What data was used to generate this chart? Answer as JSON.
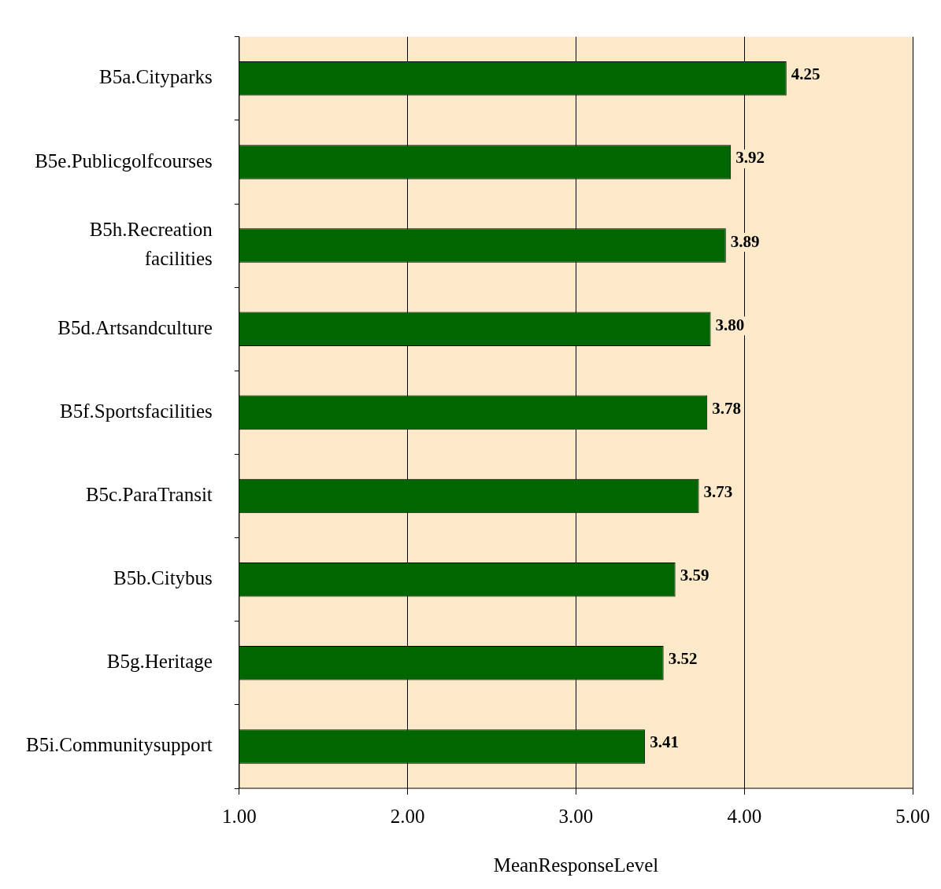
{
  "chart_data": {
    "type": "bar",
    "orientation": "horizontal",
    "xlabel": "MeanResponseLevel",
    "categories": [
      "B5a.Cityparks",
      "B5e.Publicgolfcourses",
      "B5h.Recreation facilities",
      "B5d.Artsandculture",
      "B5f.Sportsfacilities",
      "B5c.ParaTransit",
      "B5b.Citybus",
      "B5g.Heritage",
      "B5i.Communitysupport"
    ],
    "values": [
      4.25,
      3.92,
      3.89,
      3.8,
      3.78,
      3.73,
      3.59,
      3.52,
      3.41
    ],
    "value_labels": [
      "4.25",
      "3.92",
      "3.89",
      "3.80",
      "3.78",
      "3.73",
      "3.59",
      "3.52",
      "3.41"
    ],
    "color": "#006600",
    "xlim": [
      1,
      5
    ],
    "xticks": [
      {
        "value": 1,
        "label": "1.00"
      },
      {
        "value": 2,
        "label": "2.00"
      },
      {
        "value": 3,
        "label": "3.00"
      },
      {
        "value": 4,
        "label": "4.00"
      },
      {
        "value": 5,
        "label": "5.00"
      }
    ],
    "grid": "x",
    "legend": false
  }
}
